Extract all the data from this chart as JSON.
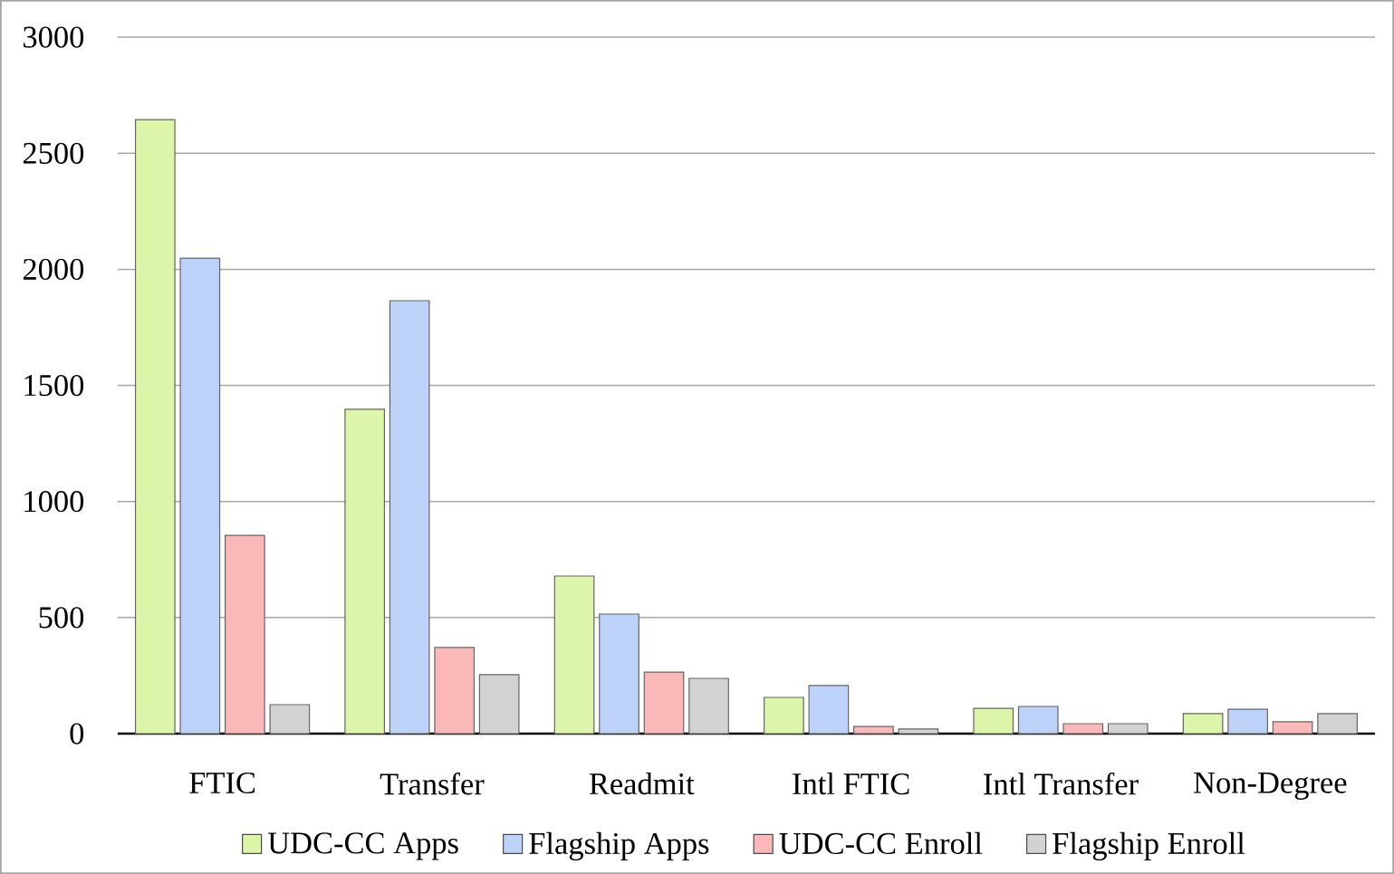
{
  "chart_data": {
    "type": "bar",
    "categories": [
      "FTIC",
      "Transfer",
      "Readmit",
      "Intl FTIC",
      "Intl Transfer",
      "Non-Degree"
    ],
    "series": [
      {
        "name": "UDC-CC Apps",
        "color": "#dcf5a8",
        "values": [
          2645,
          1397,
          679,
          156,
          109,
          86
        ]
      },
      {
        "name": "Flagship Apps",
        "color": "#bcd2f8",
        "values": [
          2048,
          1865,
          515,
          207,
          117,
          105
        ]
      },
      {
        "name": "UDC-CC Enroll",
        "color": "#fbb8b8",
        "values": [
          854,
          371,
          265,
          31,
          43,
          51
        ]
      },
      {
        "name": "Flagship Enroll",
        "color": "#d2d2d2",
        "values": [
          125,
          254,
          238,
          20,
          43,
          86
        ]
      }
    ],
    "ylim": [
      0,
      3000
    ],
    "yticks": [
      0,
      500,
      1000,
      1500,
      2000,
      2500,
      3000
    ],
    "grid": "y",
    "legend": "bottom"
  }
}
